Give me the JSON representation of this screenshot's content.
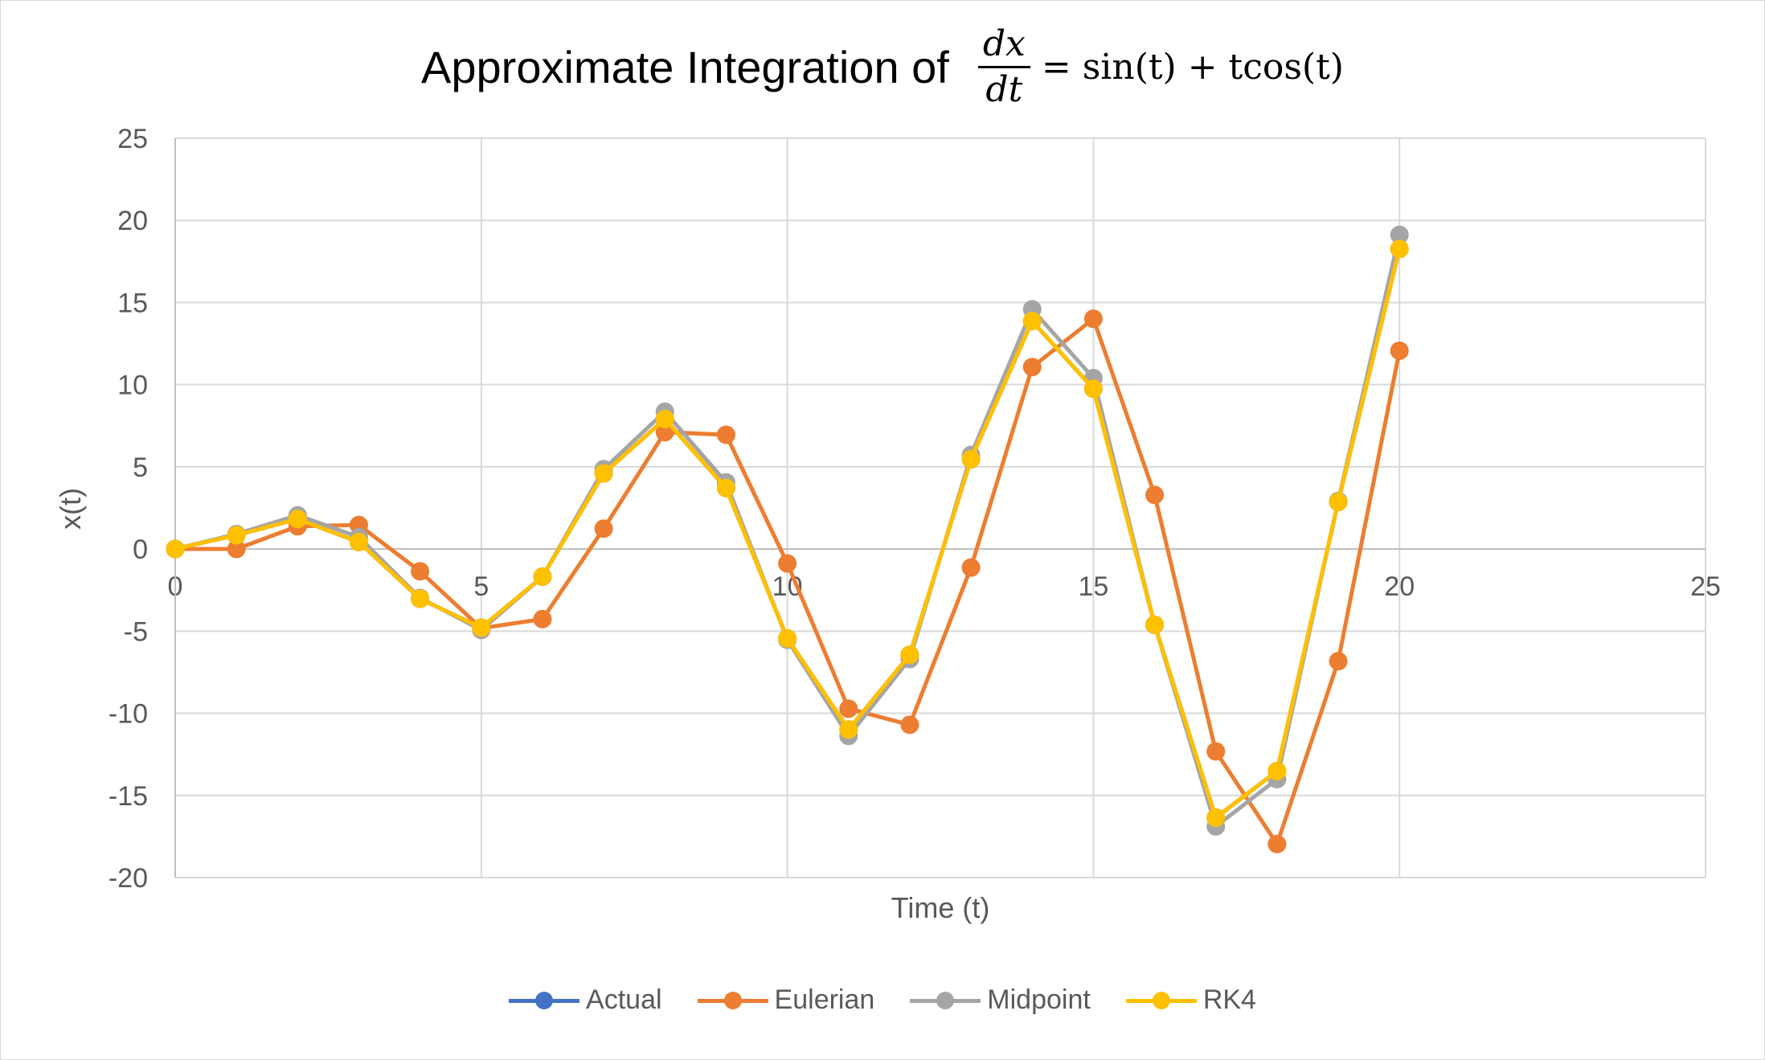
{
  "chart_data": {
    "type": "line",
    "title": {
      "prefix": "Approximate Integration of",
      "numerator": "dx",
      "denominator": "dt",
      "rhs": "= sin(t) + tcos(t)"
    },
    "xlabel": "Time (t)",
    "ylabel": "x(t)",
    "xlim": [
      0,
      25
    ],
    "ylim": [
      -20,
      25
    ],
    "x_ticks": [
      0,
      5,
      10,
      15,
      20,
      25
    ],
    "y_ticks": [
      -20,
      -15,
      -10,
      -5,
      0,
      5,
      10,
      15,
      20,
      25
    ],
    "grid": true,
    "legend_position": "bottom",
    "x": [
      0,
      1,
      2,
      3,
      4,
      5,
      6,
      7,
      8,
      9,
      10,
      11,
      12,
      13,
      14,
      15,
      16,
      17,
      18,
      19,
      20
    ],
    "series": [
      {
        "name": "Actual",
        "color": "#4472C4",
        "values": [
          0,
          0.84,
          1.82,
          0.42,
          -3.03,
          -4.79,
          -1.68,
          4.6,
          7.91,
          3.71,
          -5.44,
          -10.99,
          -6.44,
          5.46,
          13.87,
          9.75,
          -4.61,
          -16.35,
          -13.52,
          2.86,
          18.26
        ]
      },
      {
        "name": "Eulerian",
        "color": "#ED7D31",
        "values": [
          0,
          0,
          1.38,
          1.46,
          -1.36,
          -4.82,
          -4.27,
          1.24,
          7.11,
          6.95,
          -0.88,
          -9.72,
          -10.7,
          -1.13,
          11.07,
          14.01,
          3.29,
          -12.32,
          -17.96,
          -6.83,
          12.06
        ]
      },
      {
        "name": "Midpoint",
        "color": "#A5A5A5",
        "values": [
          0,
          0.91,
          2.05,
          0.72,
          -2.98,
          -4.93,
          -1.69,
          4.86,
          8.36,
          4.05,
          -5.53,
          -11.38,
          -6.7,
          5.72,
          14.59,
          10.4,
          -4.62,
          -16.89,
          -14.01,
          2.92,
          19.12
        ]
      },
      {
        "name": "RK4",
        "color": "#FFC000",
        "values": [
          0,
          0.84,
          1.82,
          0.42,
          -3.03,
          -4.79,
          -1.68,
          4.6,
          7.91,
          3.71,
          -5.44,
          -10.99,
          -6.44,
          5.46,
          13.87,
          9.75,
          -4.61,
          -16.35,
          -13.52,
          2.86,
          18.26
        ]
      }
    ]
  }
}
